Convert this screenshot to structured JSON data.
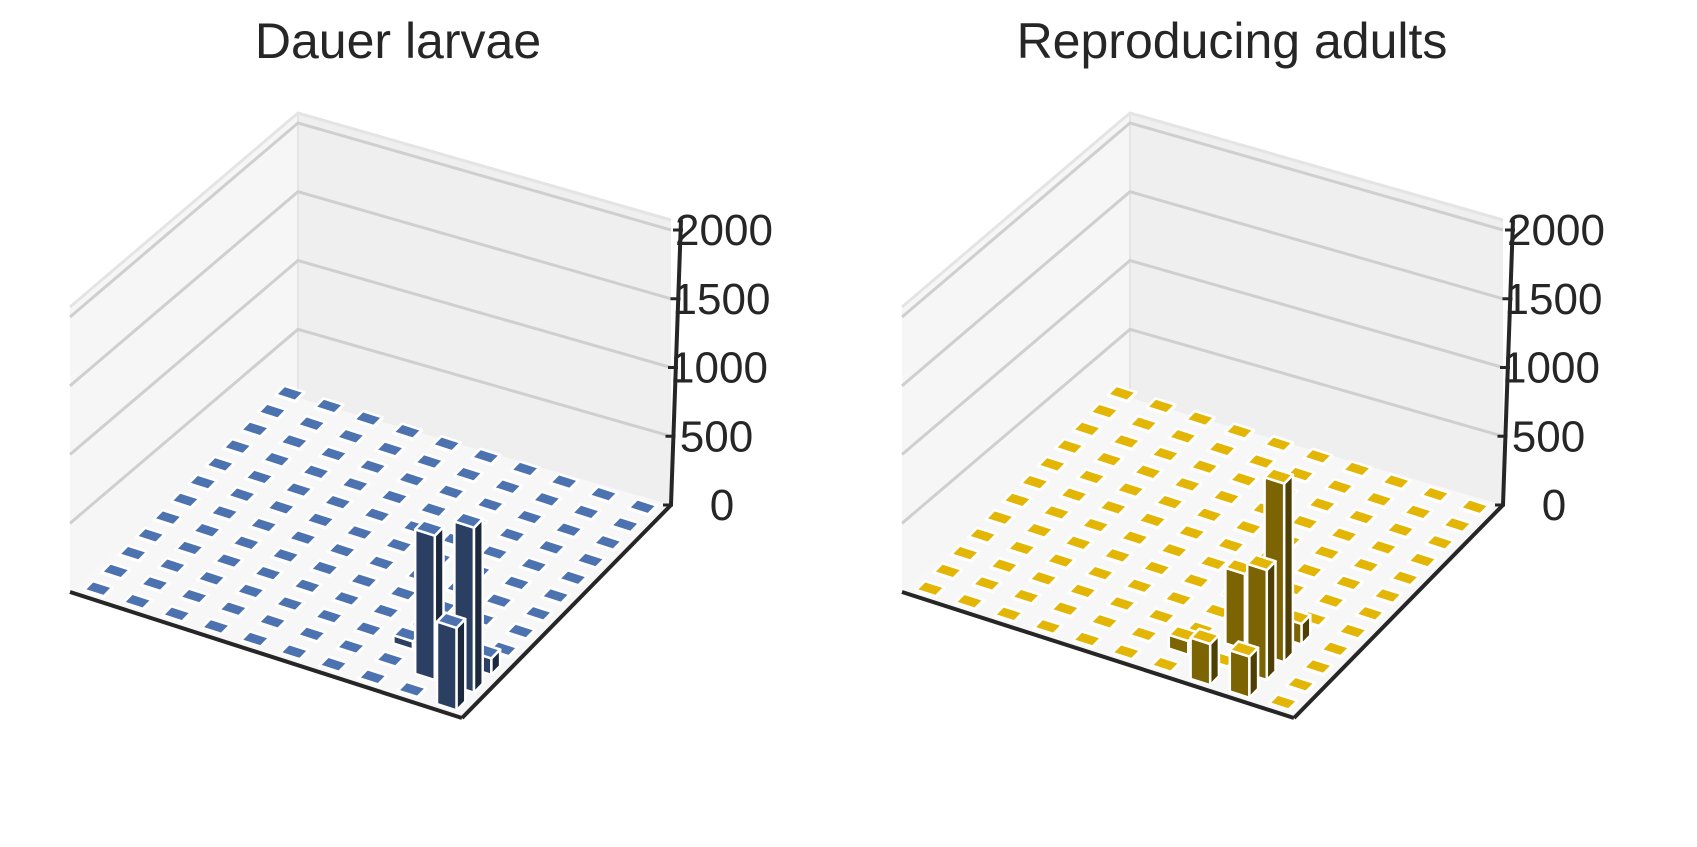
{
  "chart_data": [
    {
      "type": "bar3d",
      "title": "Dauer larvae",
      "grid_size": [
        10,
        12
      ],
      "zlim": [
        0,
        2000
      ],
      "z_ticks": [
        "0",
        "500",
        "1000",
        "1500",
        "2000"
      ],
      "bar_color": "#4C72B0",
      "grid": true,
      "values": [
        [
          600,
          1200,
          120,
          0,
          0,
          0,
          0,
          0,
          0,
          0,
          0,
          0
        ],
        [
          0,
          1050,
          200,
          0,
          0,
          0,
          0,
          0,
          0,
          0,
          0,
          0
        ],
        [
          0,
          0,
          60,
          0,
          0,
          0,
          0,
          0,
          0,
          0,
          0,
          0
        ],
        [
          0,
          0,
          0,
          0,
          0,
          0,
          0,
          0,
          0,
          0,
          0,
          0
        ],
        [
          0,
          0,
          0,
          0,
          0,
          0,
          0,
          0,
          0,
          0,
          0,
          0
        ],
        [
          0,
          0,
          0,
          0,
          0,
          0,
          0,
          0,
          0,
          0,
          0,
          0
        ],
        [
          0,
          0,
          0,
          0,
          0,
          0,
          0,
          0,
          0,
          0,
          0,
          0
        ],
        [
          0,
          0,
          0,
          0,
          0,
          0,
          0,
          0,
          0,
          0,
          0,
          0
        ],
        [
          0,
          0,
          0,
          0,
          0,
          0,
          0,
          0,
          0,
          0,
          0,
          0
        ],
        [
          0,
          0,
          0,
          0,
          0,
          0,
          0,
          0,
          0,
          0,
          0,
          0
        ]
      ]
    },
    {
      "type": "bar3d",
      "title": "Reproducing adults",
      "grid_size": [
        10,
        12
      ],
      "zlim": [
        0,
        2000
      ],
      "z_ticks": [
        "0",
        "500",
        "1000",
        "1500",
        "2000"
      ],
      "bar_color": "#E3B505",
      "grid": true,
      "values": [
        [
          0,
          0,
          0,
          0,
          0,
          0,
          0,
          0,
          0,
          0,
          0,
          0
        ],
        [
          300,
          800,
          1300,
          150,
          0,
          0,
          0,
          0,
          0,
          0,
          0,
          0
        ],
        [
          300,
          0,
          550,
          0,
          0,
          0,
          0,
          0,
          0,
          0,
          0,
          0
        ],
        [
          0,
          100,
          0,
          0,
          0,
          0,
          0,
          0,
          0,
          0,
          0,
          0
        ],
        [
          0,
          0,
          0,
          0,
          0,
          0,
          0,
          0,
          0,
          0,
          0,
          0
        ],
        [
          0,
          0,
          0,
          0,
          0,
          0,
          0,
          0,
          0,
          0,
          0,
          0
        ],
        [
          0,
          0,
          0,
          0,
          0,
          0,
          0,
          0,
          0,
          0,
          0,
          0
        ],
        [
          0,
          0,
          0,
          0,
          0,
          0,
          0,
          0,
          0,
          0,
          0,
          0
        ],
        [
          0,
          0,
          0,
          0,
          0,
          0,
          0,
          0,
          0,
          0,
          0,
          0
        ],
        [
          0,
          0,
          0,
          0,
          0,
          0,
          0,
          0,
          0,
          0,
          0,
          0
        ]
      ]
    }
  ]
}
